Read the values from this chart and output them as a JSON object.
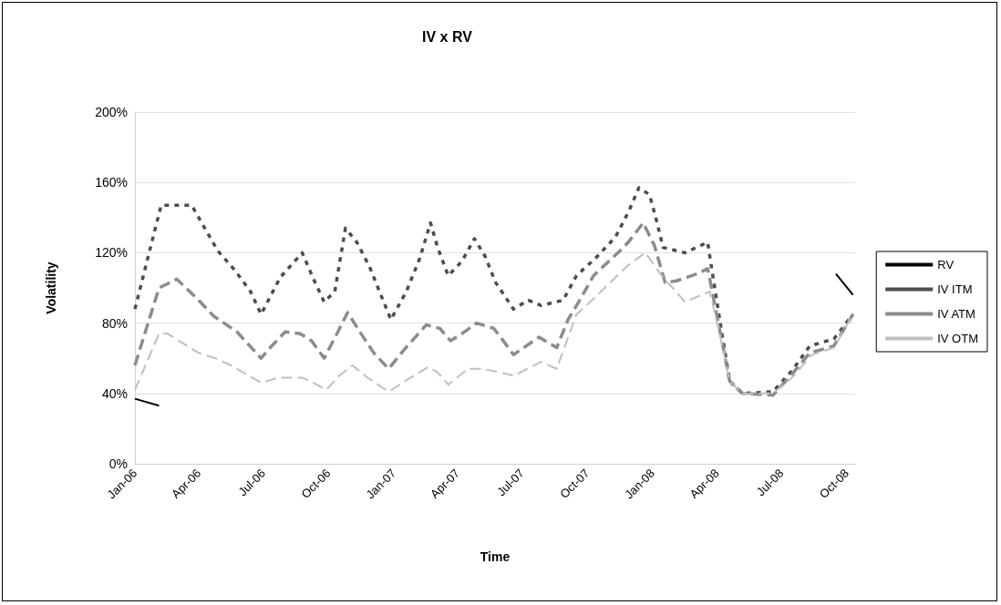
{
  "chart_data": {
    "type": "line",
    "title": "IV x RV",
    "xlabel": "Time",
    "ylabel": "Volatility",
    "xlim": [
      "2006-01-01",
      "2008-10-13"
    ],
    "xticks": [
      {
        "value": "2006-01-01",
        "label": "Jan-06"
      },
      {
        "value": "2006-04-01",
        "label": "Apr-06"
      },
      {
        "value": "2006-07-01",
        "label": "Jul-06"
      },
      {
        "value": "2006-10-01",
        "label": "Oct-06"
      },
      {
        "value": "2007-01-01",
        "label": "Jan-07"
      },
      {
        "value": "2007-04-01",
        "label": "Apr-07"
      },
      {
        "value": "2007-07-01",
        "label": "Jul-07"
      },
      {
        "value": "2007-10-01",
        "label": "Oct-07"
      },
      {
        "value": "2008-01-01",
        "label": "Jan-08"
      },
      {
        "value": "2008-04-01",
        "label": "Apr-08"
      },
      {
        "value": "2008-07-01",
        "label": "Jul-08"
      },
      {
        "value": "2008-10-01",
        "label": "Oct-08"
      }
    ],
    "ylim": [
      0,
      200
    ],
    "yticks": [
      {
        "value": 0,
        "label": "0%"
      },
      {
        "value": 40,
        "label": "40%"
      },
      {
        "value": 80,
        "label": "80%"
      },
      {
        "value": 120,
        "label": "120%"
      },
      {
        "value": 160,
        "label": "160%"
      },
      {
        "value": 200,
        "label": "200%"
      }
    ],
    "grid": "y",
    "legend": "right",
    "marker": "none",
    "series": [
      {
        "name": "RV",
        "color": "#000000",
        "line_style": "solid",
        "x": [
          "2006-01-01",
          "2006-02-04",
          "2007-06-01",
          "2008-09-16",
          "2008-10-10"
        ],
        "values": [
          37,
          33,
          null,
          108,
          96
        ]
      },
      {
        "name": "IV ITM",
        "color": "#4d4d4d",
        "line_style": "dotted",
        "x": [
          "2006-01-01",
          "2006-02-07",
          "2006-03-22",
          "2006-04-28",
          "2006-05-22",
          "2006-06-13",
          "2006-06-28",
          "2006-07-25",
          "2006-08-25",
          "2006-09-10",
          "2006-09-25",
          "2006-10-10",
          "2006-10-25",
          "2006-11-10",
          "2006-11-28",
          "2006-12-13",
          "2006-12-28",
          "2007-01-19",
          "2007-02-07",
          "2007-02-22",
          "2007-03-04",
          "2007-03-19",
          "2007-04-07",
          "2007-04-25",
          "2007-05-10",
          "2007-05-25",
          "2007-06-19",
          "2007-07-10",
          "2007-07-28",
          "2007-08-28",
          "2007-09-16",
          "2007-10-13",
          "2007-11-10",
          "2007-11-28",
          "2007-12-13",
          "2007-12-28",
          "2008-01-07",
          "2008-01-16",
          "2008-02-16",
          "2008-03-19",
          "2008-03-25",
          "2008-04-07",
          "2008-04-19",
          "2008-05-07",
          "2008-06-19",
          "2008-07-16",
          "2008-08-10",
          "2008-09-13",
          "2008-10-10"
        ],
        "values": [
          88,
          147,
          147,
          121,
          110,
          98,
          85,
          106,
          120,
          105,
          92,
          98,
          134,
          126,
          112,
          97,
          82,
          98,
          117,
          137,
          123,
          107,
          115,
          128,
          118,
          103,
          88,
          93,
          90,
          93,
          107,
          117,
          129,
          143,
          157,
          153,
          138,
          123,
          120,
          126,
          110,
          77,
          47,
          40,
          41,
          53,
          67,
          71,
          85
        ]
      },
      {
        "name": "IV ATM",
        "color": "#8c8c8c",
        "line_style": "dashed",
        "x": [
          "2006-01-01",
          "2006-02-04",
          "2006-03-01",
          "2006-04-01",
          "2006-04-22",
          "2006-05-25",
          "2006-06-28",
          "2006-07-13",
          "2006-08-01",
          "2006-08-22",
          "2006-09-07",
          "2006-09-25",
          "2006-10-13",
          "2006-10-28",
          "2006-11-16",
          "2006-12-04",
          "2006-12-25",
          "2007-01-16",
          "2007-02-16",
          "2007-03-07",
          "2007-03-22",
          "2007-04-04",
          "2007-04-28",
          "2007-05-22",
          "2007-06-01",
          "2007-06-19",
          "2007-07-25",
          "2007-08-19",
          "2007-09-04",
          "2007-09-19",
          "2007-10-10",
          "2007-11-16",
          "2007-11-28",
          "2007-12-19",
          "2008-01-04",
          "2008-01-19",
          "2008-02-04",
          "2008-03-04",
          "2008-03-19",
          "2008-04-07",
          "2008-04-19",
          "2008-05-07",
          "2008-06-19",
          "2008-07-16",
          "2008-08-10",
          "2008-09-13",
          "2008-10-10"
        ],
        "values": [
          56,
          100,
          105,
          93,
          84,
          75,
          60,
          67,
          75,
          74,
          70,
          60,
          74,
          86,
          74,
          63,
          54,
          65,
          79,
          77,
          70,
          73,
          80,
          77,
          72,
          62,
          72,
          66,
          82,
          92,
          107,
          121,
          126,
          137,
          124,
          103,
          104,
          108,
          111,
          72,
          47,
          40,
          39,
          51,
          63,
          67,
          85
        ]
      },
      {
        "name": "IV OTM",
        "color": "#bfbfbf",
        "line_style": "dashed",
        "x": [
          "2006-01-01",
          "2006-02-04",
          "2006-02-16",
          "2006-04-01",
          "2006-04-25",
          "2006-05-16",
          "2006-06-28",
          "2006-07-22",
          "2006-08-25",
          "2006-09-10",
          "2006-09-28",
          "2006-10-16",
          "2006-11-04",
          "2006-11-25",
          "2006-12-25",
          "2007-01-25",
          "2007-02-19",
          "2007-03-04",
          "2007-03-19",
          "2007-04-16",
          "2007-05-04",
          "2007-06-01",
          "2007-06-19",
          "2007-07-28",
          "2007-08-19",
          "2007-09-16",
          "2007-10-13",
          "2007-11-10",
          "2007-11-28",
          "2007-12-22",
          "2008-01-16",
          "2008-02-01",
          "2008-02-16",
          "2008-03-22",
          "2008-04-07",
          "2008-04-19",
          "2008-05-07",
          "2008-06-19",
          "2008-07-16",
          "2008-08-13",
          "2008-09-13",
          "2008-10-10"
        ],
        "values": [
          42,
          74,
          74,
          63,
          60,
          56,
          46,
          49,
          49,
          46,
          42,
          50,
          56,
          49,
          41,
          49,
          55,
          52,
          45,
          54,
          54,
          52,
          50,
          58,
          54,
          85,
          95,
          106,
          113,
          120,
          106,
          99,
          92,
          98,
          70,
          47,
          40,
          40,
          49,
          62,
          66,
          85
        ]
      }
    ]
  }
}
